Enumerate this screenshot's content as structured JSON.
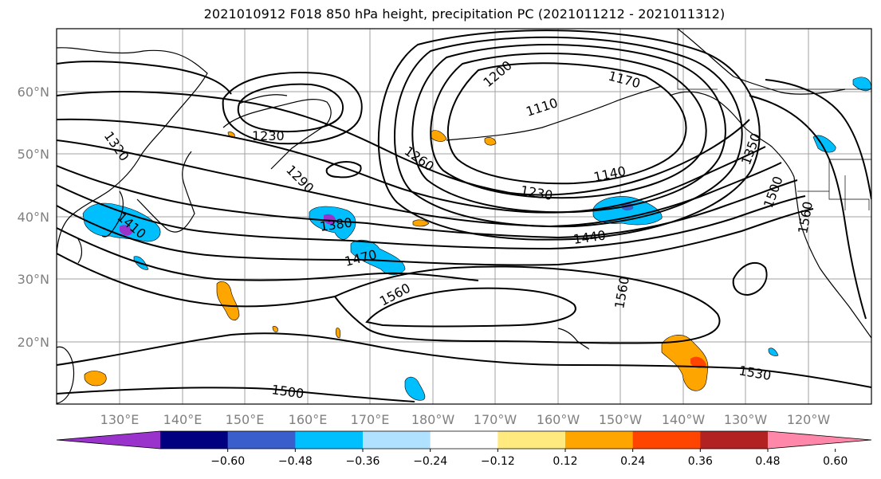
{
  "title": "2021010912 F018 850 hPa height, precipitation PC (2021011212 - 2021011312)",
  "map": {
    "lon_ticks": [
      "130°E",
      "140°E",
      "150°E",
      "160°E",
      "170°E",
      "180°W",
      "170°W",
      "160°W",
      "150°W",
      "140°W",
      "130°W",
      "120°W"
    ],
    "lat_ticks": [
      "60°N",
      "50°N",
      "40°N",
      "30°N",
      "20°N"
    ],
    "contour_labels": [
      "1200",
      "1170",
      "1110",
      "1230",
      "1320",
      "1260",
      "1290",
      "1350",
      "1140",
      "1230",
      "1410",
      "1380",
      "1500",
      "1560",
      "1440",
      "1470",
      "1560",
      "1560",
      "1500",
      "1530"
    ],
    "colors": {
      "background": "#ffffff",
      "grid": "#a0a0a0",
      "contour": "#000000",
      "tick_label": "#808080"
    }
  },
  "colorbar": {
    "ticks": [
      "−0.60",
      "−0.48",
      "−0.36",
      "−0.24",
      "−0.12",
      "0.12",
      "0.24",
      "0.36",
      "0.48",
      "0.60"
    ],
    "colors": [
      "#9933cc",
      "#000080",
      "#3a5fcd",
      "#00bfff",
      "#b0e2ff",
      "#ffffff",
      "#ffea80",
      "#ffa500",
      "#ff4500",
      "#b22222",
      "#ff88aa"
    ]
  }
}
